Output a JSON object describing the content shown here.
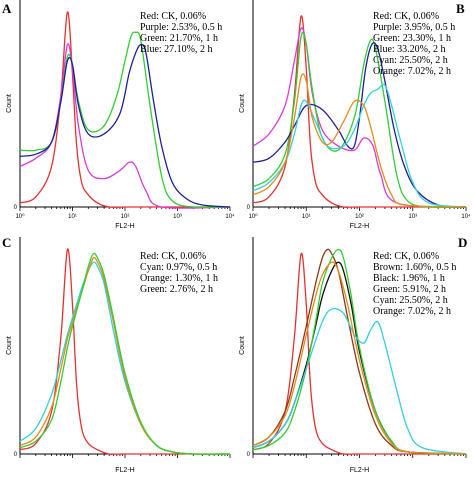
{
  "chart_data": [
    {
      "panel": "A",
      "type": "line",
      "xlabel": "FL2-H",
      "ylabel": "Count",
      "xscale": "log",
      "xlim": [
        1,
        10000
      ],
      "xticks": [
        "10⁰",
        "10¹",
        "10²",
        "10³",
        "10⁴"
      ],
      "ylim": [
        0,
        100
      ],
      "yticks": [
        "0"
      ],
      "legend": [
        "Red: CK, 0.06%",
        "Purple: 2.53%, 0.5 h",
        "Green: 21.70%, 1 h",
        "Blue: 27.10%, 2 h"
      ],
      "series": [
        {
          "color": "#e53030",
          "x": [
            1,
            2,
            4,
            6,
            8,
            10,
            12,
            15,
            20,
            30,
            50,
            100,
            1000,
            10000
          ],
          "y": [
            2,
            5,
            20,
            55,
            96,
            65,
            30,
            12,
            6,
            2,
            0,
            0,
            0,
            0
          ]
        },
        {
          "color": "#d63cd6",
          "x": [
            1,
            2,
            4,
            6,
            8,
            10,
            13,
            20,
            40,
            80,
            120,
            160,
            250,
            500,
            10000
          ],
          "y": [
            20,
            24,
            32,
            55,
            80,
            68,
            40,
            18,
            14,
            18,
            22,
            20,
            8,
            0,
            0
          ]
        },
        {
          "color": "#33cc33",
          "x": [
            1,
            2,
            4,
            6,
            8,
            10,
            13,
            20,
            40,
            70,
            100,
            130,
            160,
            200,
            300,
            500,
            800,
            2000,
            10000
          ],
          "y": [
            28,
            28,
            32,
            52,
            74,
            70,
            52,
            38,
            40,
            55,
            72,
            84,
            86,
            82,
            50,
            15,
            3,
            0,
            0
          ]
        },
        {
          "color": "#1f1f99",
          "x": [
            1,
            2,
            4,
            6,
            8,
            10,
            13,
            20,
            40,
            80,
            120,
            160,
            200,
            250,
            350,
            500,
            800,
            1500,
            3000,
            10000
          ],
          "y": [
            25,
            26,
            32,
            52,
            72,
            70,
            50,
            36,
            36,
            46,
            66,
            76,
            80,
            76,
            52,
            30,
            12,
            4,
            1,
            0
          ]
        }
      ]
    },
    {
      "panel": "B",
      "type": "line",
      "xlabel": "FL2-H",
      "ylabel": "Count",
      "xscale": "log",
      "xlim": [
        1,
        10000
      ],
      "xticks": [
        "10⁰",
        "10¹",
        "10²",
        "10³",
        "10⁴"
      ],
      "ylim": [
        0,
        100
      ],
      "yticks": [
        "0"
      ],
      "legend": [
        "Red: CK, 0.06%",
        "Purple: 3.95%, 0.5 h",
        "Green: 23.30%, 1 h",
        "Blue: 33.20%, 2 h",
        "Cyan: 25.50%, 2 h",
        "Orange: 7.02%, 2 h"
      ],
      "series": [
        {
          "color": "#e53030",
          "x": [
            1,
            2,
            4,
            6,
            8,
            10,
            12,
            15,
            20,
            30,
            50,
            100,
            10000
          ],
          "y": [
            2,
            5,
            20,
            55,
            94,
            68,
            30,
            12,
            6,
            2,
            0,
            0,
            0
          ]
        },
        {
          "color": "#d63cd6",
          "x": [
            1,
            2,
            4,
            6,
            8,
            10,
            13,
            20,
            40,
            80,
            120,
            180,
            250,
            500,
            10000
          ],
          "y": [
            30,
            36,
            50,
            72,
            88,
            80,
            56,
            38,
            30,
            28,
            34,
            30,
            16,
            2,
            0
          ]
        },
        {
          "color": "#33cc33",
          "x": [
            1,
            2,
            4,
            6,
            8,
            10,
            13,
            20,
            40,
            80,
            120,
            160,
            200,
            300,
            500,
            800,
            2000,
            10000
          ],
          "y": [
            10,
            14,
            26,
            52,
            84,
            80,
            58,
            34,
            28,
            44,
            70,
            82,
            78,
            52,
            16,
            3,
            0,
            0
          ]
        },
        {
          "color": "#1f1f99",
          "x": [
            1,
            2,
            4,
            6,
            10,
            20,
            40,
            60,
            80,
            100,
            130,
            170,
            220,
            300,
            450,
            700,
            1200,
            3000,
            10000
          ],
          "y": [
            22,
            24,
            32,
            40,
            50,
            48,
            38,
            30,
            30,
            44,
            68,
            80,
            78,
            62,
            38,
            20,
            8,
            1,
            0
          ]
        },
        {
          "color": "#33d0d8",
          "x": [
            1,
            2,
            4,
            6,
            8,
            10,
            15,
            25,
            50,
            80,
            120,
            160,
            220,
            300,
            400,
            600,
            1000,
            2000,
            10000
          ],
          "y": [
            8,
            12,
            22,
            36,
            50,
            52,
            42,
            30,
            30,
            38,
            50,
            56,
            58,
            60,
            50,
            32,
            12,
            2,
            0
          ]
        },
        {
          "color": "#e68a1a",
          "x": [
            1,
            2,
            4,
            6,
            8,
            10,
            13,
            20,
            30,
            50,
            80,
            120,
            160,
            250,
            400,
            700,
            10000
          ],
          "y": [
            6,
            10,
            22,
            44,
            64,
            62,
            44,
            32,
            32,
            42,
            52,
            50,
            40,
            20,
            6,
            1,
            0
          ]
        }
      ]
    },
    {
      "panel": "C",
      "type": "line",
      "xlabel": "FL2-H",
      "ylabel": "Count",
      "xscale": "log",
      "xlim": [
        1,
        10000
      ],
      "ylim": [
        0,
        100
      ],
      "yticks": [
        "0"
      ],
      "legend": [
        "Red: CK, 0.06%",
        "Cyan: 0.97%, 0.5 h",
        "Orange: 1.30%, 1 h",
        "Green: 2.76%, 2 h"
      ],
      "series": [
        {
          "color": "#e53030",
          "x": [
            1,
            2,
            4,
            6,
            8,
            10,
            12,
            15,
            20,
            30,
            50,
            100,
            10000
          ],
          "y": [
            2,
            5,
            20,
            55,
            96,
            70,
            32,
            12,
            5,
            2,
            0,
            0,
            0
          ]
        },
        {
          "color": "#33d0d8",
          "x": [
            1,
            2,
            4,
            6,
            8,
            10,
            15,
            20,
            25,
            30,
            40,
            60,
            100,
            200,
            400,
            800,
            2000,
            10000
          ],
          "y": [
            6,
            12,
            28,
            44,
            56,
            64,
            78,
            86,
            90,
            88,
            80,
            58,
            34,
            14,
            4,
            1,
            0,
            0
          ]
        },
        {
          "color": "#e68a1a",
          "x": [
            1,
            2,
            4,
            6,
            8,
            10,
            15,
            20,
            25,
            30,
            40,
            60,
            100,
            200,
            400,
            800,
            2000,
            10000
          ],
          "y": [
            4,
            8,
            22,
            40,
            54,
            62,
            76,
            86,
            92,
            90,
            82,
            62,
            36,
            14,
            4,
            1,
            0,
            0
          ]
        },
        {
          "color": "#33cc33",
          "x": [
            1,
            2,
            4,
            6,
            8,
            10,
            15,
            20,
            25,
            30,
            40,
            60,
            100,
            200,
            400,
            800,
            2000,
            10000
          ],
          "y": [
            3,
            6,
            16,
            34,
            50,
            60,
            76,
            88,
            94,
            92,
            84,
            64,
            38,
            15,
            4,
            1,
            0,
            0
          ]
        }
      ]
    },
    {
      "panel": "D",
      "type": "line",
      "xlabel": "FL2-H",
      "ylabel": "Count",
      "xscale": "log",
      "xlim": [
        1,
        10000
      ],
      "ylim": [
        0,
        100
      ],
      "yticks": [
        "0"
      ],
      "legend": [
        "Red: CK, 0.06%",
        "Brown: 1.60%, 0.5 h",
        "Black: 1.96%, 1 h",
        "Green: 5.91%, 2 h",
        "Cyan: 25.50%, 2 h",
        "Orange: 7.02%, 2 h"
      ],
      "series": [
        {
          "color": "#e53030",
          "x": [
            1,
            2,
            4,
            6,
            8,
            10,
            12,
            15,
            20,
            30,
            50,
            100,
            10000
          ],
          "y": [
            2,
            5,
            20,
            55,
            94,
            70,
            32,
            12,
            5,
            2,
            0,
            0,
            0
          ]
        },
        {
          "color": "#8b3a1a",
          "x": [
            1,
            2,
            4,
            6,
            10,
            15,
            20,
            25,
            30,
            40,
            60,
            100,
            200,
            400,
            800,
            10000
          ],
          "y": [
            4,
            8,
            20,
            36,
            60,
            80,
            92,
            96,
            94,
            86,
            64,
            38,
            14,
            4,
            1,
            0
          ]
        },
        {
          "color": "#111111",
          "x": [
            1,
            2,
            4,
            6,
            10,
            15,
            20,
            30,
            40,
            50,
            70,
            100,
            200,
            400,
            800,
            10000
          ],
          "y": [
            3,
            6,
            14,
            24,
            42,
            60,
            74,
            86,
            90,
            86,
            70,
            48,
            20,
            6,
            1,
            0
          ]
        },
        {
          "color": "#33cc33",
          "x": [
            1,
            2,
            4,
            6,
            10,
            15,
            20,
            30,
            40,
            50,
            70,
            100,
            200,
            400,
            800,
            10000
          ],
          "y": [
            2,
            4,
            10,
            20,
            40,
            62,
            80,
            92,
            96,
            92,
            74,
            50,
            20,
            6,
            1,
            0
          ]
        },
        {
          "color": "#33d0d8",
          "x": [
            1,
            2,
            4,
            6,
            10,
            20,
            30,
            50,
            80,
            120,
            160,
            220,
            300,
            500,
            800,
            1500,
            10000
          ],
          "y": [
            3,
            6,
            14,
            24,
            40,
            62,
            68,
            66,
            56,
            52,
            58,
            62,
            52,
            30,
            12,
            3,
            0
          ]
        },
        {
          "color": "#e68a1a",
          "x": [
            1,
            2,
            4,
            6,
            10,
            15,
            20,
            30,
            40,
            60,
            100,
            200,
            400,
            800,
            10000
          ],
          "y": [
            4,
            8,
            18,
            32,
            56,
            74,
            84,
            90,
            86,
            70,
            44,
            18,
            5,
            1,
            0
          ]
        }
      ]
    }
  ]
}
